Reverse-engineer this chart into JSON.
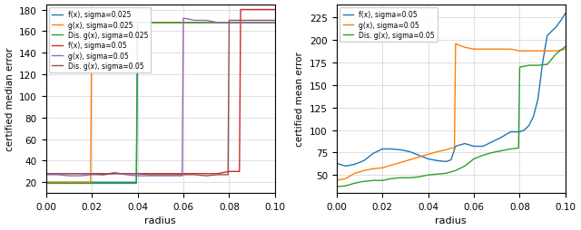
{
  "left": {
    "xlabel": "radius",
    "ylabel": "certified median error",
    "xlim": [
      0.0,
      0.1
    ],
    "ylim": [
      10,
      185
    ],
    "yticks": [
      20,
      40,
      60,
      80,
      100,
      120,
      140,
      160,
      180
    ],
    "legend": [
      "f(x), sigma=0.025",
      "g(x), sigma=0.025",
      "Dis. g(x), sigma=0.025",
      "f(x), sigma=0.05",
      "g(x), sigma=0.05",
      "Dis. g(x), sigma=0.05"
    ],
    "colors": [
      "#1f77b4",
      "#ff7f0e",
      "#2ca02c",
      "#d62728",
      "#9467bd",
      "#8c564b"
    ],
    "series": {
      "fx_025": {
        "x": [
          0.0,
          0.005,
          0.01,
          0.015,
          0.02,
          0.025,
          0.03,
          0.035,
          0.0395,
          0.04,
          0.045,
          0.05,
          0.055,
          0.06,
          0.065,
          0.07,
          0.075,
          0.08,
          0.085,
          0.09,
          0.095,
          0.1
        ],
        "y": [
          20,
          20,
          20,
          20,
          20,
          20,
          20,
          20,
          20,
          168,
          168,
          168,
          168,
          168,
          168,
          168,
          168,
          168,
          168,
          168,
          168,
          168
        ]
      },
      "gx_025": {
        "x": [
          0.0,
          0.005,
          0.01,
          0.015,
          0.0195,
          0.02,
          0.025,
          0.03,
          0.035,
          0.04,
          0.045,
          0.05,
          0.055,
          0.06,
          0.065,
          0.07,
          0.075,
          0.08,
          0.085,
          0.09,
          0.095,
          0.1
        ],
        "y": [
          20,
          20,
          20,
          20,
          20,
          168,
          168,
          168,
          168,
          168,
          168,
          168,
          168,
          168,
          168,
          168,
          168,
          168,
          168,
          168,
          168,
          168
        ]
      },
      "dis_gx_025": {
        "x": [
          0.0,
          0.005,
          0.01,
          0.015,
          0.02,
          0.025,
          0.03,
          0.035,
          0.0395,
          0.04,
          0.045,
          0.05,
          0.055,
          0.06,
          0.065,
          0.07,
          0.075,
          0.08,
          0.085,
          0.09,
          0.095,
          0.1
        ],
        "y": [
          19,
          19,
          19,
          19,
          19,
          19,
          19,
          19,
          19,
          168,
          168,
          168,
          168,
          168,
          168,
          168,
          168,
          168,
          168,
          168,
          168,
          168
        ]
      },
      "fx_05": {
        "x": [
          0.0,
          0.005,
          0.01,
          0.015,
          0.02,
          0.025,
          0.03,
          0.035,
          0.04,
          0.045,
          0.05,
          0.055,
          0.06,
          0.065,
          0.07,
          0.075,
          0.08,
          0.0845,
          0.085,
          0.09,
          0.095,
          0.1
        ],
        "y": [
          28,
          28,
          28,
          28,
          28,
          28,
          28,
          28,
          28,
          28,
          28,
          28,
          28,
          28,
          28,
          28,
          30,
          30,
          180,
          180,
          180,
          180
        ]
      },
      "gx_05": {
        "x": [
          0.0,
          0.005,
          0.01,
          0.015,
          0.02,
          0.025,
          0.03,
          0.035,
          0.04,
          0.045,
          0.05,
          0.055,
          0.0595,
          0.06,
          0.065,
          0.07,
          0.075,
          0.08,
          0.085,
          0.09,
          0.095,
          0.1
        ],
        "y": [
          27,
          27,
          26,
          26,
          27,
          27,
          29,
          27,
          26,
          26,
          26,
          26,
          26,
          172,
          170,
          170,
          168,
          168,
          168,
          168,
          168,
          168
        ]
      },
      "dis_gx_05": {
        "x": [
          0.0,
          0.005,
          0.01,
          0.015,
          0.02,
          0.025,
          0.03,
          0.035,
          0.04,
          0.045,
          0.05,
          0.055,
          0.06,
          0.065,
          0.07,
          0.075,
          0.0795,
          0.08,
          0.085,
          0.09,
          0.095,
          0.1
        ],
        "y": [
          28,
          28,
          28,
          28,
          28,
          27,
          28,
          28,
          28,
          27,
          27,
          27,
          27,
          27,
          26,
          27,
          27,
          170,
          170,
          170,
          170,
          170
        ]
      }
    }
  },
  "right": {
    "xlabel": "radius",
    "ylabel": "certified mean error",
    "xlim": [
      0.0,
      0.1
    ],
    "ylim": [
      30,
      240
    ],
    "yticks": [
      50,
      75,
      100,
      125,
      150,
      175,
      200,
      225
    ],
    "legend": [
      "f(x), sigma=0.05",
      "g(x), sigma=0.05",
      "Dis. g(x), sigma=0.05"
    ],
    "colors": [
      "#1f77b4",
      "#ff7f0e",
      "#2ca02c"
    ],
    "series": {
      "fx_05": {
        "x": [
          0.0,
          0.004,
          0.008,
          0.012,
          0.016,
          0.02,
          0.024,
          0.028,
          0.032,
          0.036,
          0.04,
          0.044,
          0.048,
          0.05,
          0.052,
          0.056,
          0.06,
          0.064,
          0.068,
          0.072,
          0.076,
          0.08,
          0.082,
          0.084,
          0.086,
          0.088,
          0.09,
          0.092,
          0.094,
          0.096,
          0.098,
          0.1
        ],
        "y": [
          63,
          60,
          62,
          66,
          74,
          79,
          79,
          78,
          76,
          72,
          68,
          66,
          65,
          67,
          82,
          85,
          82,
          82,
          87,
          92,
          98,
          98,
          100,
          105,
          115,
          135,
          175,
          205,
          210,
          215,
          222,
          230
        ]
      },
      "gx_05": {
        "x": [
          0.0,
          0.004,
          0.008,
          0.012,
          0.016,
          0.02,
          0.024,
          0.028,
          0.032,
          0.036,
          0.04,
          0.044,
          0.048,
          0.05,
          0.0515,
          0.052,
          0.056,
          0.06,
          0.064,
          0.068,
          0.072,
          0.076,
          0.08,
          0.084,
          0.088,
          0.092,
          0.096,
          0.1
        ],
        "y": [
          44,
          46,
          52,
          55,
          57,
          58,
          61,
          64,
          67,
          70,
          73,
          76,
          78,
          80,
          80,
          196,
          192,
          190,
          190,
          190,
          190,
          190,
          188,
          188,
          188,
          188,
          188,
          190
        ]
      },
      "dis_gx_05": {
        "x": [
          0.0,
          0.004,
          0.008,
          0.012,
          0.016,
          0.02,
          0.024,
          0.028,
          0.032,
          0.036,
          0.04,
          0.044,
          0.048,
          0.052,
          0.056,
          0.06,
          0.064,
          0.068,
          0.072,
          0.076,
          0.0795,
          0.08,
          0.084,
          0.088,
          0.092,
          0.096,
          0.1
        ],
        "y": [
          37,
          38,
          41,
          43,
          44,
          44,
          46,
          47,
          47,
          48,
          50,
          51,
          52,
          55,
          60,
          68,
          72,
          75,
          77,
          79,
          80,
          170,
          172,
          172,
          173,
          185,
          193
        ]
      }
    }
  },
  "figsize": [
    6.4,
    2.55
  ],
  "dpi": 100
}
